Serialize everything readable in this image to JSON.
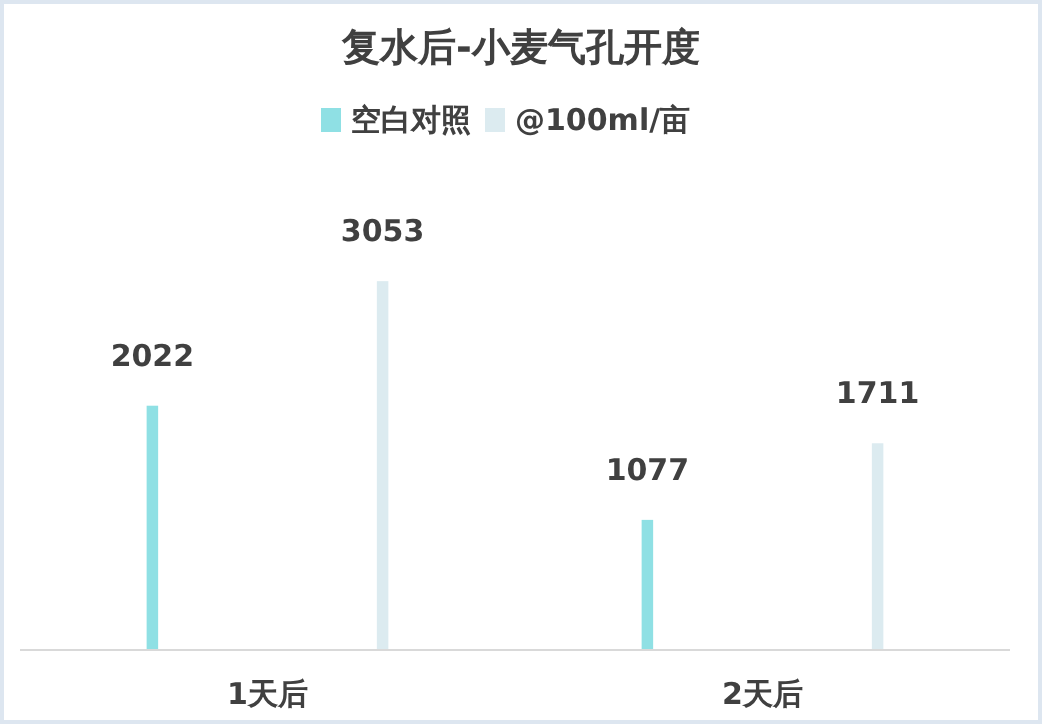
{
  "chart_data": {
    "type": "bar",
    "title": "复水后-小麦气孔开度",
    "categories": [
      "1天后",
      "2天后"
    ],
    "series": [
      {
        "name": "空白对照",
        "color": "#8fe0e4",
        "values": [
          2022,
          1077
        ]
      },
      {
        "name": "@100ml/亩",
        "color": "#dcebf0",
        "values": [
          3053,
          1711
        ]
      }
    ],
    "data_labels": true,
    "legend": "top"
  }
}
